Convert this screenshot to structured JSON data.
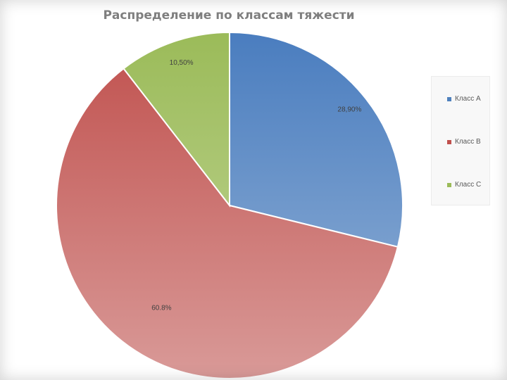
{
  "chart_data": {
    "type": "pie",
    "title": "Распределение по классам тяжести",
    "categories": [
      "Класс А",
      "Класс В",
      "Класс С"
    ],
    "values": [
      28.9,
      60.8,
      10.5
    ],
    "data_labels": [
      "28,90%",
      "60.8%",
      "10,50%"
    ],
    "colors": {
      "Класс А": [
        "#4a7dbf",
        "#95b3d7"
      ],
      "Класс В": [
        "#c0504d",
        "#d99a98"
      ],
      "Класс С": [
        "#9bbb59",
        "#c4d79b"
      ]
    },
    "legend_position": "right"
  }
}
